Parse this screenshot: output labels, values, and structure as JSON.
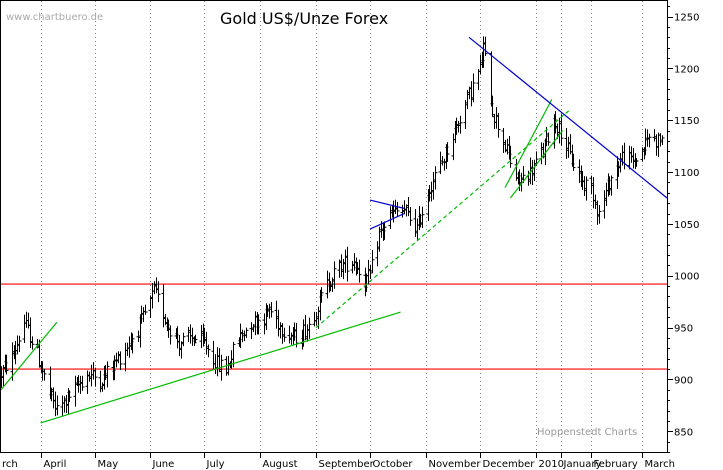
{
  "chart_data": {
    "type": "bar",
    "subtype": "ohlc",
    "title": "Gold US$/Unze Forex",
    "watermark": "www.chartbuero.de",
    "credit": "Hoppenstedt Charts",
    "xlabel": "",
    "ylabel": "",
    "ylim": [
      830,
      1265
    ],
    "y_ticks": [
      850,
      900,
      950,
      1000,
      1050,
      1100,
      1150,
      1200,
      1250
    ],
    "y_axis_side": "right",
    "x_tick_labels": [
      "rch",
      "April",
      "May",
      "June",
      "July",
      "August",
      "September",
      "October",
      "November",
      "December",
      "2010",
      "January",
      "February",
      "March"
    ],
    "grid": "vertical dotted at month starts",
    "colors": {
      "bars": "#000000",
      "support_lines": "#ff0000",
      "uptrend": "#00bb00",
      "downtrend": "#0000cc",
      "axis": "#000000"
    },
    "x_range": [
      "2009-03-10",
      "2010-03-15"
    ],
    "month_starts": [
      {
        "date": "2009-04-01",
        "label": "April"
      },
      {
        "date": "2009-05-01",
        "label": "May"
      },
      {
        "date": "2009-06-01",
        "label": "June"
      },
      {
        "date": "2009-07-01",
        "label": "July"
      },
      {
        "date": "2009-08-01",
        "label": "August"
      },
      {
        "date": "2009-09-01",
        "label": "September"
      },
      {
        "date": "2009-10-01",
        "label": "October"
      },
      {
        "date": "2009-11-01",
        "label": "November"
      },
      {
        "date": "2009-12-01",
        "label": "December"
      },
      {
        "date": "2010-01-01",
        "label": "2010"
      },
      {
        "date": "2010-01-15",
        "label": "January"
      },
      {
        "date": "2010-02-01",
        "label": "February"
      },
      {
        "date": "2010-03-01",
        "label": "March"
      }
    ],
    "price_path": [
      [
        "2009-03-10",
        905
      ],
      [
        "2009-03-17",
        925
      ],
      [
        "2009-03-23",
        955
      ],
      [
        "2009-03-30",
        925
      ],
      [
        "2009-04-06",
        885
      ],
      [
        "2009-04-10",
        870
      ],
      [
        "2009-04-20",
        890
      ],
      [
        "2009-04-27",
        905
      ],
      [
        "2009-05-05",
        900
      ],
      [
        "2009-05-12",
        915
      ],
      [
        "2009-05-20",
        935
      ],
      [
        "2009-05-27",
        955
      ],
      [
        "2009-06-01",
        975
      ],
      [
        "2009-06-03",
        985
      ],
      [
        "2009-06-10",
        955
      ],
      [
        "2009-06-17",
        935
      ],
      [
        "2009-06-24",
        940
      ],
      [
        "2009-07-01",
        935
      ],
      [
        "2009-07-08",
        915
      ],
      [
        "2009-07-13",
        910
      ],
      [
        "2009-07-20",
        940
      ],
      [
        "2009-07-27",
        955
      ],
      [
        "2009-08-03",
        960
      ],
      [
        "2009-08-06",
        968
      ],
      [
        "2009-08-13",
        950
      ],
      [
        "2009-08-20",
        940
      ],
      [
        "2009-08-27",
        950
      ],
      [
        "2009-09-03",
        975
      ],
      [
        "2009-09-08",
        995
      ],
      [
        "2009-09-15",
        1010
      ],
      [
        "2009-09-22",
        1015
      ],
      [
        "2009-09-28",
        995
      ],
      [
        "2009-10-01",
        1000
      ],
      [
        "2009-10-06",
        1040
      ],
      [
        "2009-10-13",
        1060
      ],
      [
        "2009-10-20",
        1063
      ],
      [
        "2009-10-27",
        1045
      ],
      [
        "2009-11-03",
        1085
      ],
      [
        "2009-11-10",
        1110
      ],
      [
        "2009-11-17",
        1140
      ],
      [
        "2009-11-24",
        1170
      ],
      [
        "2009-12-01",
        1200
      ],
      [
        "2009-12-03",
        1220
      ],
      [
        "2009-12-08",
        1160
      ],
      [
        "2009-12-15",
        1125
      ],
      [
        "2009-12-22",
        1090
      ],
      [
        "2009-12-29",
        1100
      ],
      [
        "2010-01-05",
        1120
      ],
      [
        "2010-01-11",
        1150
      ],
      [
        "2010-01-15",
        1140
      ],
      [
        "2010-01-20",
        1115
      ],
      [
        "2010-01-27",
        1090
      ],
      [
        "2010-02-01",
        1085
      ],
      [
        "2010-02-05",
        1060
      ],
      [
        "2010-02-12",
        1095
      ],
      [
        "2010-02-18",
        1115
      ],
      [
        "2010-02-24",
        1110
      ],
      [
        "2010-03-01",
        1120
      ],
      [
        "2010-03-05",
        1135
      ],
      [
        "2010-03-10",
        1130
      ],
      [
        "2010-03-12",
        1135
      ]
    ],
    "trendlines": [
      {
        "kind": "support",
        "color": "red",
        "p1": [
          "2009-03-10",
          992
        ],
        "p2": [
          "2010-03-15",
          992
        ]
      },
      {
        "kind": "support",
        "color": "red",
        "p1": [
          "2009-03-10",
          910
        ],
        "p2": [
          "2010-03-15",
          910
        ]
      },
      {
        "kind": "uptrend",
        "color": "green",
        "dash": false,
        "p1": [
          "2009-04-01",
          858
        ],
        "p2": [
          "2009-10-18",
          965
        ]
      },
      {
        "kind": "uptrend",
        "color": "green",
        "dash": false,
        "p1": [
          "2009-03-10",
          890
        ],
        "p2": [
          "2009-04-10",
          955
        ]
      },
      {
        "kind": "uptrend",
        "color": "green",
        "dash": true,
        "p1": [
          "2009-09-01",
          950
        ],
        "p2": [
          "2010-01-20",
          1160
        ]
      },
      {
        "kind": "channel",
        "color": "green",
        "dash": false,
        "p1": [
          "2009-12-15",
          1085
        ],
        "p2": [
          "2010-01-10",
          1170
        ]
      },
      {
        "kind": "channel",
        "color": "green",
        "dash": false,
        "p1": [
          "2009-12-18",
          1075
        ],
        "p2": [
          "2010-01-16",
          1140
        ]
      },
      {
        "kind": "downtrend",
        "color": "blue",
        "dash": false,
        "p1": [
          "2009-11-25",
          1230
        ],
        "p2": [
          "2010-03-15",
          1075
        ]
      },
      {
        "kind": "triangle",
        "color": "blue",
        "dash": false,
        "p1": [
          "2009-10-01",
          1073
        ],
        "p2": [
          "2009-10-20",
          1065
        ]
      },
      {
        "kind": "triangle",
        "color": "blue",
        "dash": false,
        "p1": [
          "2009-10-01",
          1045
        ],
        "p2": [
          "2009-10-20",
          1060
        ]
      }
    ]
  }
}
